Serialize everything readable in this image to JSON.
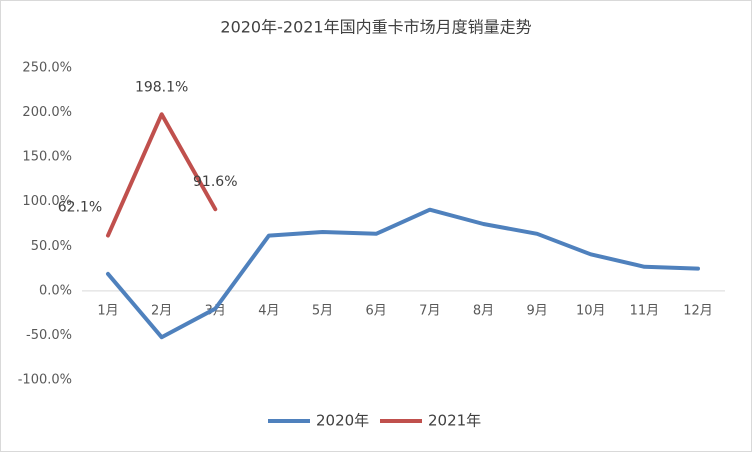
{
  "chart_data": {
    "type": "line",
    "title": "2020年-2021年国内重卡市场月度销量走势",
    "categories": [
      "1月",
      "2月",
      "3月",
      "4月",
      "5月",
      "6月",
      "7月",
      "8月",
      "9月",
      "10月",
      "11月",
      "12月"
    ],
    "series": [
      {
        "name": "2020年",
        "color": "#4f81bd",
        "values": [
          19,
          -52,
          -20,
          62,
          66,
          64,
          91,
          75,
          64,
          41,
          27,
          25
        ]
      },
      {
        "name": "2021年",
        "color": "#c0504d",
        "values": [
          62.1,
          198.1,
          91.6,
          null,
          null,
          null,
          null,
          null,
          null,
          null,
          null,
          null
        ],
        "value_labels": [
          "62.1%",
          "198.1%",
          "91.6%",
          null,
          null,
          null,
          null,
          null,
          null,
          null,
          null,
          null
        ]
      }
    ],
    "ylim": [
      -100,
      250
    ],
    "yticks": [
      {
        "value": -100,
        "label": "-100.0%"
      },
      {
        "value": -50,
        "label": "-50.0%"
      },
      {
        "value": 0,
        "label": "0.0%"
      },
      {
        "value": 50,
        "label": "50.0%"
      },
      {
        "value": 100,
        "label": "100.0%"
      },
      {
        "value": 150,
        "label": "150.0%"
      },
      {
        "value": 200,
        "label": "200.0%"
      },
      {
        "value": 250,
        "label": "250.0%"
      }
    ],
    "grid": false,
    "legend": "bottom"
  }
}
